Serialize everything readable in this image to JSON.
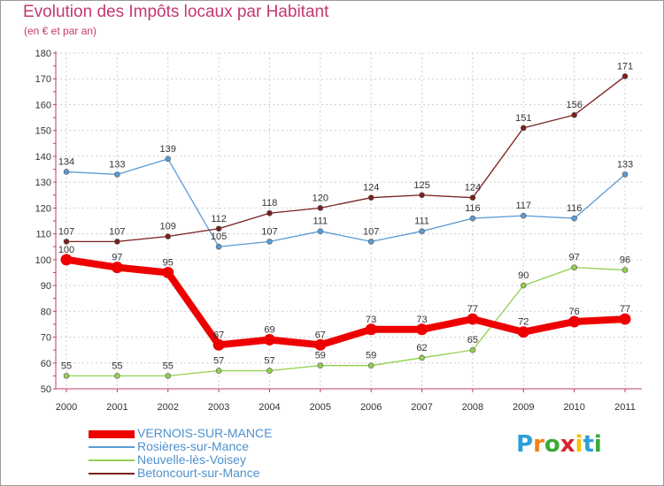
{
  "chart_data": {
    "type": "line",
    "title": "Evolution des Impôts locaux par Habitant",
    "subtitle": "(en € et par an)",
    "x": [
      "2000",
      "2001",
      "2002",
      "2003",
      "2004",
      "2005",
      "2006",
      "2007",
      "2008",
      "2009",
      "2010",
      "2011"
    ],
    "yticks": [
      50,
      60,
      70,
      80,
      90,
      100,
      110,
      120,
      130,
      140,
      150,
      160,
      170,
      180
    ],
    "ylim": [
      50,
      180
    ],
    "grid": true,
    "legend_position": "bottom-left",
    "series": [
      {
        "name": "VERNOIS-SUR-MANCE",
        "color": "#ee0000",
        "values": [
          100,
          97,
          95,
          67,
          69,
          67,
          73,
          73,
          77,
          72,
          76,
          77
        ]
      },
      {
        "name": "Rosières-sur-Mance",
        "color": "#5b9bd5",
        "values": [
          134,
          133,
          139,
          105,
          107,
          111,
          107,
          111,
          116,
          117,
          116,
          133
        ]
      },
      {
        "name": "Neuvelle-lès-Voisey",
        "color": "#92d050",
        "values": [
          55,
          55,
          55,
          57,
          57,
          59,
          59,
          62,
          65,
          90,
          97,
          96
        ]
      },
      {
        "name": "Betoncourt-sur-Mance",
        "color": "#7b1e1e",
        "values": [
          107,
          107,
          109,
          112,
          118,
          120,
          124,
          125,
          124,
          151,
          156,
          171
        ]
      }
    ]
  },
  "logo": {
    "letters": [
      "P",
      "r",
      "o",
      "x",
      "i",
      "t",
      "i"
    ],
    "colors": [
      "#2e9fd8",
      "#ef7f1a",
      "#3aa935",
      "#d9232d",
      "#f2c200",
      "#2e9fd8",
      "#3aa935"
    ]
  }
}
